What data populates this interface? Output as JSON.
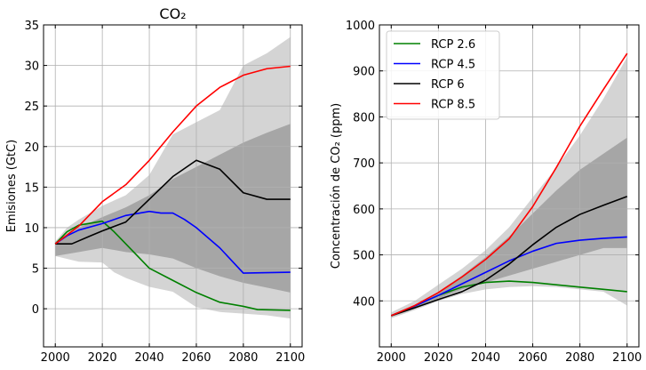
{
  "chart_data": [
    {
      "type": "line",
      "title": "CO₂",
      "xlabel": "",
      "ylabel": "Emisiones (GtC)",
      "xlim": [
        1995,
        2105
      ],
      "ylim": [
        -4.7,
        35
      ],
      "xticks": [
        2000,
        2020,
        2040,
        2060,
        2080,
        2100
      ],
      "yticks": [
        0,
        5,
        10,
        15,
        20,
        25,
        30,
        35
      ],
      "grid": true,
      "bands": [
        {
          "shade": "light",
          "color": "#d4d4d4",
          "upper": [
            [
              2000,
              8.3
            ],
            [
              2005,
              10.0
            ],
            [
              2010,
              11.0
            ],
            [
              2020,
              12.7
            ],
            [
              2030,
              14.0
            ],
            [
              2040,
              16.5
            ],
            [
              2050,
              21.5
            ],
            [
              2060,
              23.0
            ],
            [
              2070,
              24.5
            ],
            [
              2080,
              30.0
            ],
            [
              2090,
              31.5
            ],
            [
              2100,
              33.5
            ]
          ],
          "lower": [
            [
              2000,
              6.5
            ],
            [
              2010,
              5.8
            ],
            [
              2020,
              5.7
            ],
            [
              2025,
              4.5
            ],
            [
              2030,
              3.8
            ],
            [
              2040,
              2.7
            ],
            [
              2050,
              2.1
            ],
            [
              2060,
              0.2
            ],
            [
              2070,
              -0.4
            ],
            [
              2080,
              -0.6
            ],
            [
              2090,
              -0.8
            ],
            [
              2100,
              -1.2
            ]
          ]
        },
        {
          "shade": "dark",
          "color": "#a6a6a6",
          "upper": [
            [
              2000,
              8.2
            ],
            [
              2010,
              10.0
            ],
            [
              2020,
              11.3
            ],
            [
              2030,
              12.5
            ],
            [
              2040,
              14.0
            ],
            [
              2050,
              16.0
            ],
            [
              2060,
              17.5
            ],
            [
              2070,
              19.0
            ],
            [
              2080,
              20.5
            ],
            [
              2090,
              21.7
            ],
            [
              2100,
              22.8
            ]
          ],
          "lower": [
            [
              2000,
              6.5
            ],
            [
              2010,
              7.0
            ],
            [
              2020,
              7.5
            ],
            [
              2030,
              7.0
            ],
            [
              2040,
              6.7
            ],
            [
              2050,
              6.2
            ],
            [
              2060,
              5.0
            ],
            [
              2070,
              4.0
            ],
            [
              2080,
              3.2
            ],
            [
              2090,
              2.6
            ],
            [
              2100,
              2.0
            ]
          ]
        }
      ],
      "series": [
        {
          "name": "RCP 2.6",
          "color": "#008000",
          "points": [
            [
              2000,
              8.0
            ],
            [
              2005,
              9.5
            ],
            [
              2010,
              10.3
            ],
            [
              2020,
              10.8
            ],
            [
              2025,
              9.5
            ],
            [
              2030,
              8.0
            ],
            [
              2040,
              5.0
            ],
            [
              2050,
              3.5
            ],
            [
              2060,
              2.0
            ],
            [
              2070,
              0.8
            ],
            [
              2080,
              0.3
            ],
            [
              2086,
              -0.1
            ],
            [
              2100,
              -0.2
            ]
          ]
        },
        {
          "name": "RCP 4.5",
          "color": "#0000ff",
          "points": [
            [
              2000,
              8.0
            ],
            [
              2005,
              9.0
            ],
            [
              2010,
              9.7
            ],
            [
              2020,
              10.5
            ],
            [
              2030,
              11.5
            ],
            [
              2040,
              12.0
            ],
            [
              2045,
              11.8
            ],
            [
              2050,
              11.8
            ],
            [
              2055,
              11.0
            ],
            [
              2060,
              10.0
            ],
            [
              2070,
              7.5
            ],
            [
              2080,
              4.4
            ],
            [
              2100,
              4.5
            ]
          ]
        },
        {
          "name": "RCP 6",
          "color": "#000000",
          "points": [
            [
              2000,
              8.0
            ],
            [
              2007,
              8.0
            ],
            [
              2015,
              9.0
            ],
            [
              2020,
              9.6
            ],
            [
              2030,
              10.7
            ],
            [
              2040,
              13.5
            ],
            [
              2050,
              16.3
            ],
            [
              2060,
              18.3
            ],
            [
              2070,
              17.2
            ],
            [
              2080,
              14.3
            ],
            [
              2090,
              13.5
            ],
            [
              2100,
              13.5
            ]
          ]
        },
        {
          "name": "RCP 8.5",
          "color": "#ff0000",
          "points": [
            [
              2000,
              8.0
            ],
            [
              2010,
              10.2
            ],
            [
              2020,
              13.2
            ],
            [
              2030,
              15.3
            ],
            [
              2040,
              18.3
            ],
            [
              2050,
              21.8
            ],
            [
              2060,
              25.0
            ],
            [
              2070,
              27.3
            ],
            [
              2080,
              28.8
            ],
            [
              2090,
              29.6
            ],
            [
              2100,
              29.9
            ]
          ]
        }
      ]
    },
    {
      "type": "line",
      "title": "",
      "xlabel": "",
      "ylabel": "Concentración de CO₂ (ppm)",
      "xlim": [
        1995,
        2105
      ],
      "ylim": [
        300,
        1000
      ],
      "xticks": [
        2000,
        2020,
        2040,
        2060,
        2080,
        2100
      ],
      "yticks": [
        400,
        500,
        600,
        700,
        800,
        900,
        1000
      ],
      "grid": true,
      "legend": "top-left",
      "bands": [
        {
          "shade": "light",
          "color": "#d4d4d4",
          "upper": [
            [
              2000,
              375
            ],
            [
              2010,
              400
            ],
            [
              2020,
              435
            ],
            [
              2030,
              470
            ],
            [
              2040,
              510
            ],
            [
              2050,
              560
            ],
            [
              2060,
              625
            ],
            [
              2070,
              690
            ],
            [
              2080,
              760
            ],
            [
              2090,
              840
            ],
            [
              2100,
              930
            ]
          ],
          "lower": [
            [
              2000,
              362
            ],
            [
              2010,
              380
            ],
            [
              2020,
              400
            ],
            [
              2030,
              415
            ],
            [
              2040,
              425
            ],
            [
              2050,
              430
            ],
            [
              2060,
              432
            ],
            [
              2070,
              430
            ],
            [
              2080,
              425
            ],
            [
              2090,
              420
            ],
            [
              2100,
              390
            ]
          ]
        },
        {
          "shade": "dark",
          "color": "#a6a6a6",
          "upper": [
            [
              2000,
              370
            ],
            [
              2010,
              390
            ],
            [
              2020,
              420
            ],
            [
              2030,
              455
            ],
            [
              2040,
              495
            ],
            [
              2050,
              540
            ],
            [
              2060,
              590
            ],
            [
              2070,
              640
            ],
            [
              2080,
              685
            ],
            [
              2090,
              720
            ],
            [
              2100,
              755
            ]
          ],
          "lower": [
            [
              2000,
              365
            ],
            [
              2010,
              383
            ],
            [
              2020,
              405
            ],
            [
              2030,
              425
            ],
            [
              2040,
              440
            ],
            [
              2050,
              455
            ],
            [
              2060,
              470
            ],
            [
              2070,
              485
            ],
            [
              2080,
              500
            ],
            [
              2090,
              515
            ],
            [
              2100,
              515
            ]
          ]
        }
      ],
      "series": [
        {
          "name": "RCP 2.6",
          "color": "#008000",
          "points": [
            [
              2000,
              368
            ],
            [
              2010,
              389
            ],
            [
              2020,
              412
            ],
            [
              2030,
              430
            ],
            [
              2040,
              440
            ],
            [
              2050,
              443
            ],
            [
              2060,
              440
            ],
            [
              2070,
              435
            ],
            [
              2080,
              430
            ],
            [
              2090,
              425
            ],
            [
              2100,
              420
            ]
          ]
        },
        {
          "name": "RCP 4.5",
          "color": "#0000ff",
          "points": [
            [
              2000,
              368
            ],
            [
              2010,
              389
            ],
            [
              2020,
              412
            ],
            [
              2030,
              437
            ],
            [
              2040,
              462
            ],
            [
              2050,
              487
            ],
            [
              2060,
              508
            ],
            [
              2070,
              525
            ],
            [
              2080,
              532
            ],
            [
              2090,
              536
            ],
            [
              2100,
              539
            ]
          ]
        },
        {
          "name": "RCP 6",
          "color": "#000000",
          "points": [
            [
              2000,
              368
            ],
            [
              2010,
              385
            ],
            [
              2020,
              403
            ],
            [
              2030,
              420
            ],
            [
              2040,
              445
            ],
            [
              2050,
              480
            ],
            [
              2060,
              522
            ],
            [
              2070,
              560
            ],
            [
              2080,
              588
            ],
            [
              2090,
              608
            ],
            [
              2100,
              627
            ]
          ]
        },
        {
          "name": "RCP 8.5",
          "color": "#ff0000",
          "points": [
            [
              2000,
              368
            ],
            [
              2010,
              390
            ],
            [
              2020,
              418
            ],
            [
              2030,
              452
            ],
            [
              2040,
              490
            ],
            [
              2050,
              535
            ],
            [
              2060,
              605
            ],
            [
              2070,
              690
            ],
            [
              2080,
              780
            ],
            [
              2090,
              860
            ],
            [
              2100,
              938
            ]
          ]
        }
      ]
    }
  ]
}
